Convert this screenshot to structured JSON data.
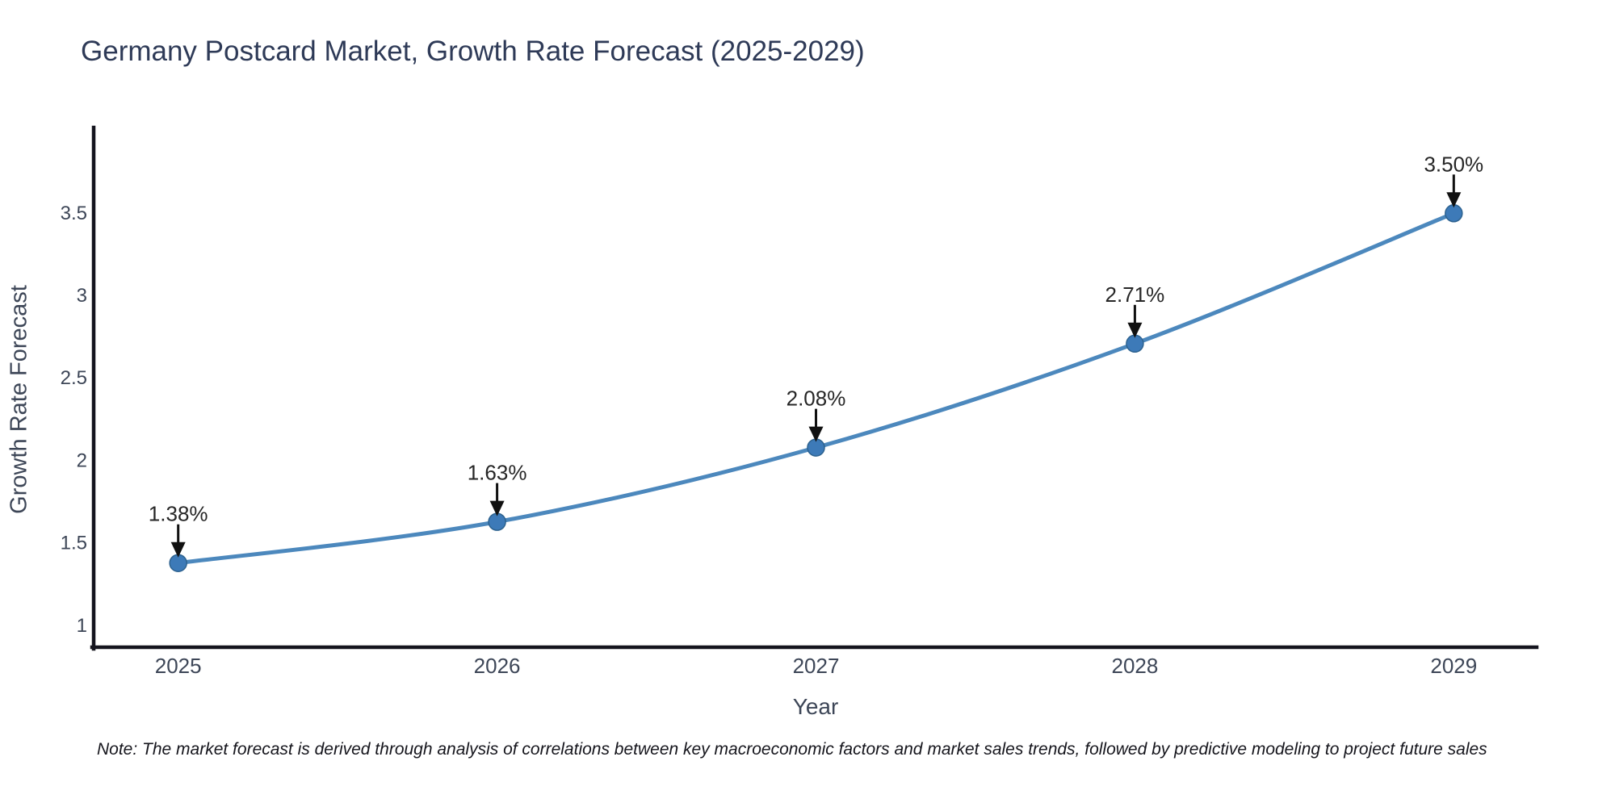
{
  "page": {
    "background": "#ffffff"
  },
  "note": "Note: The market forecast is derived through analysis of correlations between key macroeconomic factors and market sales trends, followed by predictive modeling to project future sales",
  "chart_data": {
    "type": "line",
    "title": "Germany Postcard Market, Growth Rate Forecast (2025-2029)",
    "xlabel": "Year",
    "ylabel": "Growth Rate Forecast",
    "x": [
      2025,
      2026,
      2027,
      2028,
      2029
    ],
    "series": [
      {
        "name": "Growth Rate Forecast",
        "values": [
          1.38,
          1.63,
          2.08,
          2.71,
          3.5
        ]
      }
    ],
    "point_labels": [
      "1.38%",
      "1.63%",
      "2.08%",
      "2.71%",
      "3.50%"
    ],
    "yticks": [
      1,
      1.5,
      2,
      2.5,
      3,
      3.5
    ],
    "xlim": [
      2024.74,
      2029.26
    ],
    "ylim": [
      0.87,
      4.01
    ],
    "grid": false,
    "legend": false,
    "line_shape": "spline",
    "annotation_arrows": "down-to-point",
    "colors": {
      "line": "#4c88bd",
      "marker": "#3d7ab8",
      "marker_border": "#2d628f",
      "axis": "#14141e",
      "tick_text": "#3d4657",
      "annotation_text": "#262626",
      "annotation_arrow": "#111111",
      "title_text": "#2e3a57"
    }
  }
}
